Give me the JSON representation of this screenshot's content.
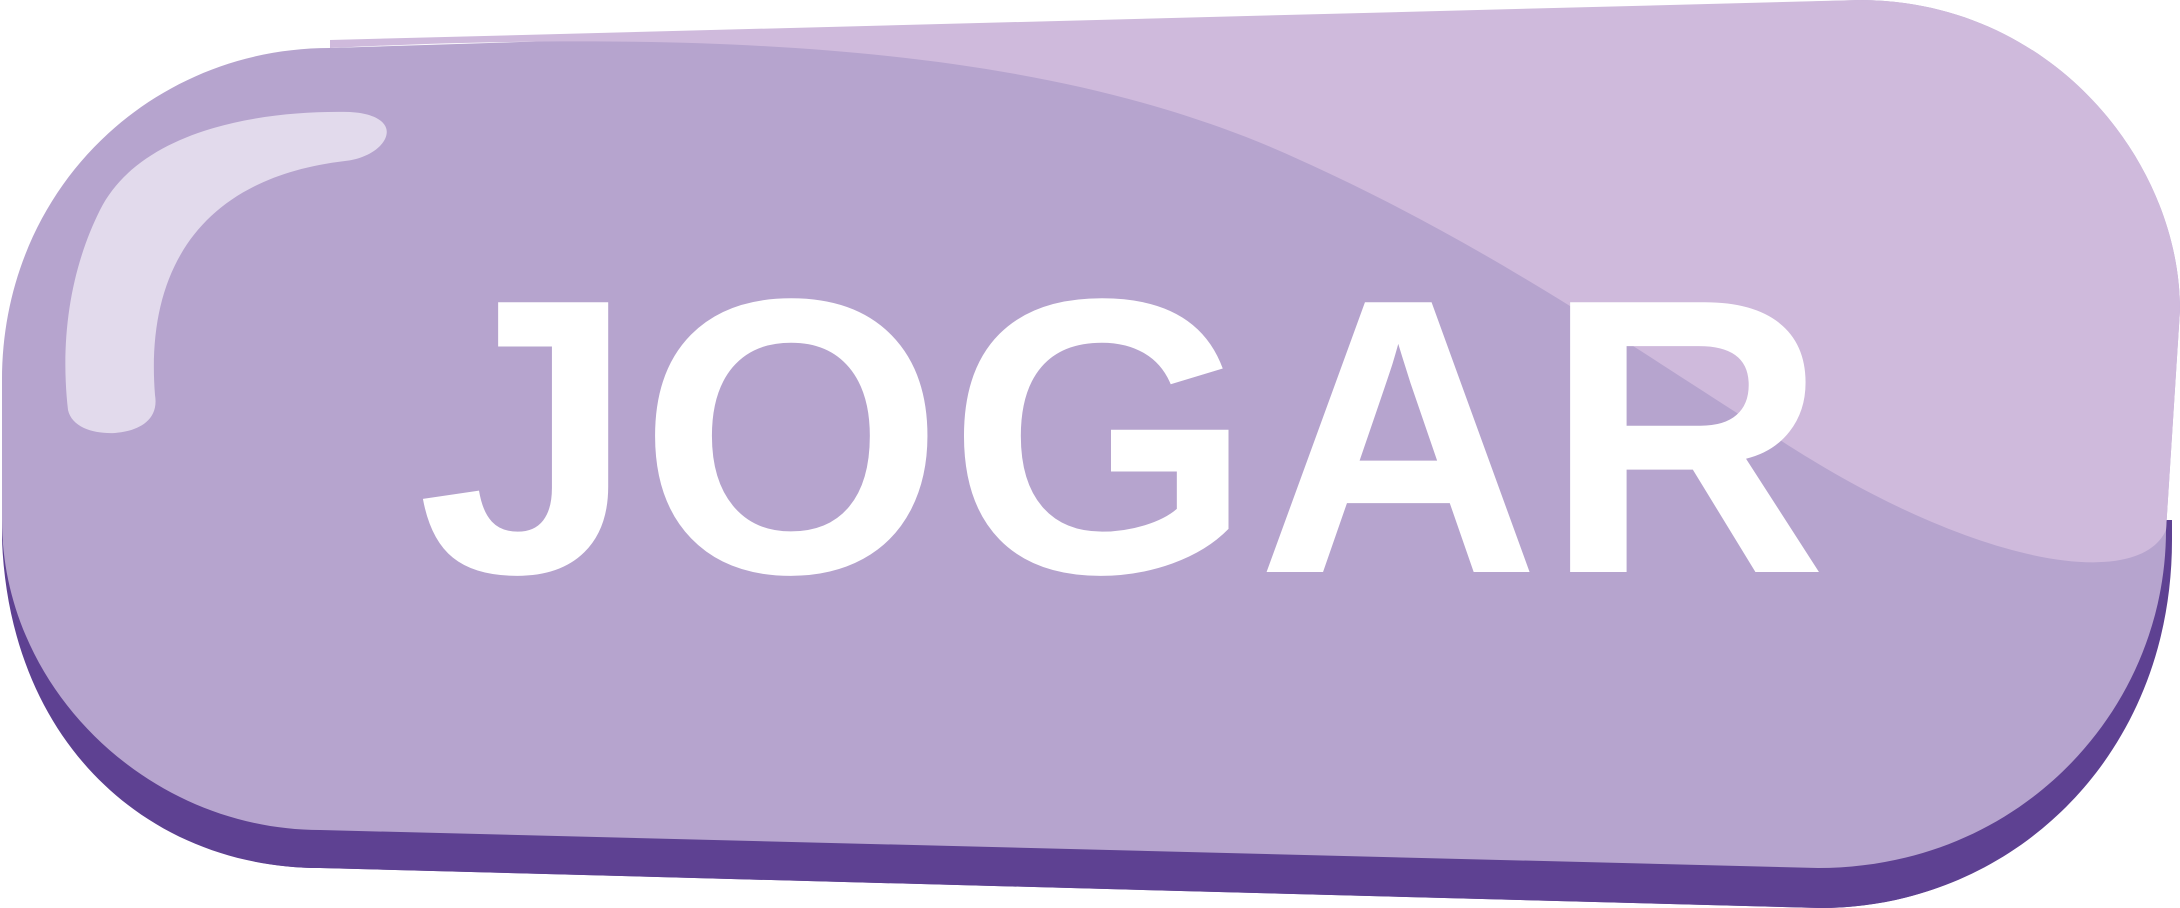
{
  "play_button": {
    "label": "JOGAR"
  },
  "colors": {
    "button_face": "#B6A4CE",
    "button_shadow": "#5E4192",
    "highlight_band": "#CFBADC",
    "gloss_stroke": "#E2DAEC",
    "label_text": "#FFFFFF"
  }
}
